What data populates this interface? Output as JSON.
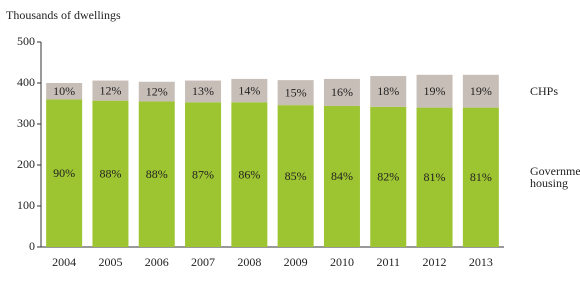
{
  "chart_data": {
    "type": "stacked_bar",
    "y_label": "Thousands of dwellings",
    "categories": [
      "2004",
      "2005",
      "2006",
      "2007",
      "2008",
      "2009",
      "2010",
      "2011",
      "2012",
      "2013"
    ],
    "series": [
      {
        "name": "Government housing",
        "color": "#9dc431",
        "values": [
          360,
          357,
          355,
          353,
          353,
          346,
          344,
          342,
          340,
          340
        ],
        "share_labels": [
          "90%",
          "88%",
          "88%",
          "87%",
          "86%",
          "85%",
          "84%",
          "82%",
          "81%",
          "81%"
        ]
      },
      {
        "name": "CHPs",
        "color": "#c8beb8",
        "values": [
          40,
          49,
          48,
          53,
          57,
          61,
          66,
          75,
          80,
          80
        ],
        "share_labels": [
          "10%",
          "12%",
          "12%",
          "13%",
          "14%",
          "15%",
          "16%",
          "18%",
          "19%",
          "19%"
        ]
      }
    ],
    "ylim": [
      0,
      500
    ],
    "yticks": [
      0,
      100,
      200,
      300,
      400,
      500
    ]
  }
}
